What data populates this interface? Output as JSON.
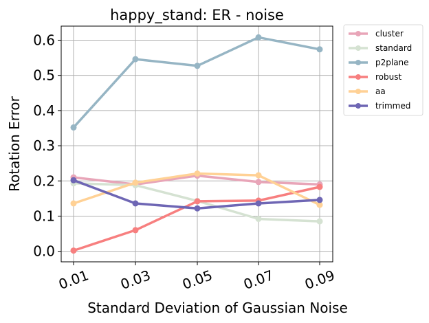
{
  "chart_data": {
    "type": "line",
    "title": "happy_stand: ER - noise",
    "xlabel": "Standard Deviation of Gaussian Noise",
    "ylabel": "Rotation Error",
    "categories": [
      "0.01",
      "0.03",
      "0.05",
      "0.07",
      "0.09"
    ],
    "ylim": [
      -0.03,
      0.64
    ],
    "yticks": [
      "0.0",
      "0.1",
      "0.2",
      "0.3",
      "0.4",
      "0.5",
      "0.6"
    ],
    "grid": true,
    "legend_position": "outside-top-right",
    "series": [
      {
        "name": "cluster",
        "color": "#e8a5b8",
        "values": [
          0.21,
          0.19,
          0.215,
          0.197,
          0.19
        ]
      },
      {
        "name": "standard",
        "color": "#d5e2d2",
        "values": [
          0.193,
          0.188,
          0.143,
          0.092,
          0.085
        ]
      },
      {
        "name": "p2plane",
        "color": "#96b5c4",
        "values": [
          0.352,
          0.546,
          0.527,
          0.608,
          0.574
        ]
      },
      {
        "name": "robust",
        "color": "#f77f7f",
        "values": [
          0.002,
          0.06,
          0.142,
          0.144,
          0.183
        ]
      },
      {
        "name": "aa",
        "color": "#ffd195",
        "values": [
          0.136,
          0.195,
          0.221,
          0.216,
          0.132
        ]
      },
      {
        "name": "trimmed",
        "color": "#6e66b4",
        "values": [
          0.202,
          0.136,
          0.122,
          0.136,
          0.146
        ]
      }
    ]
  }
}
